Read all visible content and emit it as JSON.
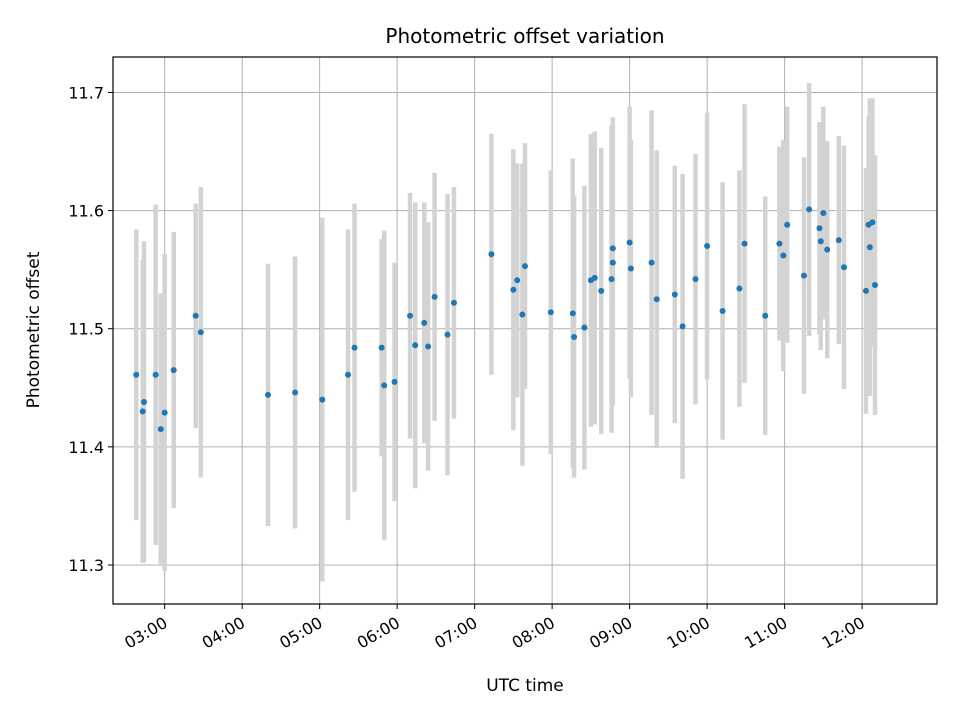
{
  "chart_data": {
    "type": "scatter",
    "title": "Photometric offset variation",
    "xlabel": "UTC time",
    "ylabel": "Photometric offset",
    "x_unit": "UTC time (HH:MM)",
    "xlim": [
      "02:20",
      "12:58"
    ],
    "ylim": [
      11.267,
      11.73
    ],
    "x_ticks": [
      "03:00",
      "04:00",
      "05:00",
      "06:00",
      "07:00",
      "08:00",
      "09:00",
      "10:00",
      "11:00",
      "12:00"
    ],
    "y_ticks": [
      "11.3",
      "11.4",
      "11.5",
      "11.6",
      "11.7"
    ],
    "grid": true,
    "series": [
      {
        "marker_color": "#1f77b4",
        "errorbar_color": "#d3d3d3",
        "x": [
          "02:38",
          "02:43",
          "02:44",
          "02:53",
          "02:57",
          "03:00",
          "03:07",
          "03:24",
          "03:28",
          "04:20",
          "04:41",
          "05:02",
          "05:22",
          "05:27",
          "05:48",
          "05:50",
          "05:58",
          "06:10",
          "06:14",
          "06:21",
          "06:24",
          "06:29",
          "06:39",
          "06:44",
          "07:13",
          "07:30",
          "07:33",
          "07:37",
          "07:39",
          "07:59",
          "08:16",
          "08:17",
          "08:25",
          "08:30",
          "08:33",
          "08:38",
          "08:46",
          "08:47",
          "08:47",
          "09:00",
          "09:01",
          "09:17",
          "09:21",
          "09:35",
          "09:41",
          "09:51",
          "10:00",
          "10:12",
          "10:25",
          "10:29",
          "10:45",
          "10:56",
          "10:59",
          "11:02",
          "11:15",
          "11:19",
          "11:27",
          "11:28",
          "11:30",
          "11:33",
          "11:42",
          "11:46",
          "12:03",
          "12:05",
          "12:06",
          "12:08",
          "12:10"
        ],
        "y": [
          11.461,
          11.43,
          11.438,
          11.461,
          11.415,
          11.429,
          11.465,
          11.511,
          11.497,
          11.444,
          11.446,
          11.44,
          11.461,
          11.484,
          11.484,
          11.452,
          11.455,
          11.511,
          11.486,
          11.505,
          11.485,
          11.527,
          11.495,
          11.522,
          11.563,
          11.533,
          11.541,
          11.512,
          11.553,
          11.514,
          11.513,
          11.493,
          11.501,
          11.541,
          11.543,
          11.532,
          11.542,
          11.568,
          11.556,
          11.573,
          11.551,
          11.556,
          11.525,
          11.529,
          11.502,
          11.542,
          11.57,
          11.515,
          11.534,
          11.572,
          11.511,
          11.572,
          11.562,
          11.588,
          11.545,
          11.601,
          11.585,
          11.574,
          11.598,
          11.567,
          11.575,
          11.552,
          11.532,
          11.588,
          11.569,
          11.59,
          11.537
        ],
        "err": [
          0.123,
          0.128,
          0.136,
          0.144,
          0.115,
          0.134,
          0.117,
          0.095,
          0.123,
          0.111,
          0.115,
          0.154,
          0.123,
          0.122,
          0.092,
          0.131,
          0.101,
          0.104,
          0.121,
          0.102,
          0.105,
          0.105,
          0.119,
          0.098,
          0.102,
          0.119,
          0.099,
          0.128,
          0.104,
          0.12,
          0.131,
          0.119,
          0.12,
          0.124,
          0.124,
          0.121,
          0.13,
          0.111,
          0.121,
          0.115,
          0.109,
          0.129,
          0.126,
          0.109,
          0.129,
          0.106,
          0.113,
          0.109,
          0.1,
          0.118,
          0.101,
          0.082,
          0.098,
          0.1,
          0.1,
          0.107,
          0.09,
          0.092,
          0.09,
          0.092,
          0.088,
          0.103,
          0.104,
          0.092,
          0.126,
          0.105,
          0.11
        ]
      }
    ]
  }
}
